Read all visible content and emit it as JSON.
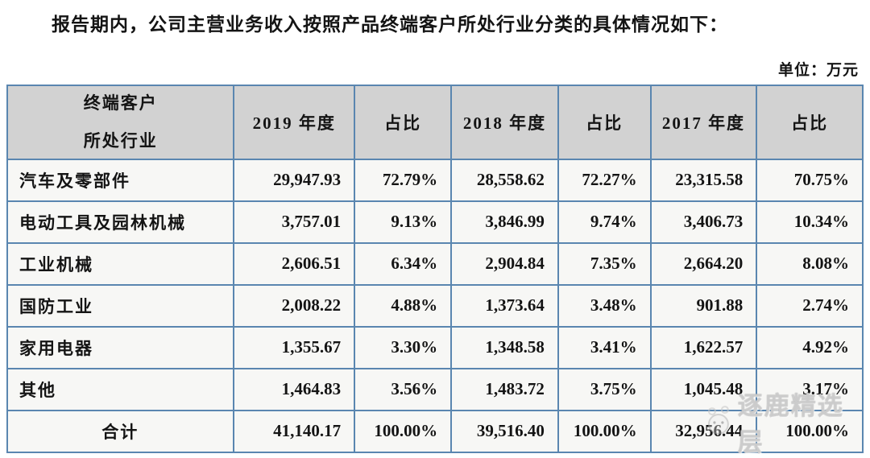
{
  "page": {
    "title": "报告期内，公司主营业务收入按照产品终端客户所处行业分类的具体情况如下：",
    "unit_label": "单位：万元"
  },
  "table": {
    "header": {
      "industry_line1": "终端客户",
      "industry_line2": "所处行业",
      "columns": [
        "2019 年度",
        "占比",
        "2018 年度",
        "占比",
        "2017 年度",
        "占比"
      ]
    },
    "rows": [
      [
        "汽车及零部件",
        "29,947.93",
        "72.79%",
        "28,558.62",
        "72.27%",
        "23,315.58",
        "70.75%"
      ],
      [
        "电动工具及园林机械",
        "3,757.01",
        "9.13%",
        "3,846.99",
        "9.74%",
        "3,406.73",
        "10.34%"
      ],
      [
        "工业机械",
        "2,606.51",
        "6.34%",
        "2,904.84",
        "7.35%",
        "2,664.20",
        "8.08%"
      ],
      [
        "国防工业",
        "2,008.22",
        "4.88%",
        "1,373.64",
        "3.48%",
        "901.88",
        "2.74%"
      ],
      [
        "家用电器",
        "1,355.67",
        "3.30%",
        "1,348.58",
        "3.41%",
        "1,622.57",
        "4.92%"
      ],
      [
        "其他",
        "1,464.83",
        "3.56%",
        "1,483.72",
        "3.75%",
        "1,045.48",
        "3.17%"
      ]
    ],
    "total_row": [
      "合计",
      "41,140.17",
      "100.00%",
      "39,516.40",
      "100.00%",
      "32,956.44",
      "100.00%"
    ],
    "column_widths_pct": [
      26.5,
      14.1,
      11.3,
      12.5,
      10.8,
      12.4,
      12.4
    ]
  },
  "watermark": {
    "text": "逐鹿精选层"
  },
  "colors": {
    "table_border": "#5a86b0",
    "header_bg": "#d2d2d2",
    "cell_bg": "#f7f7f5"
  }
}
